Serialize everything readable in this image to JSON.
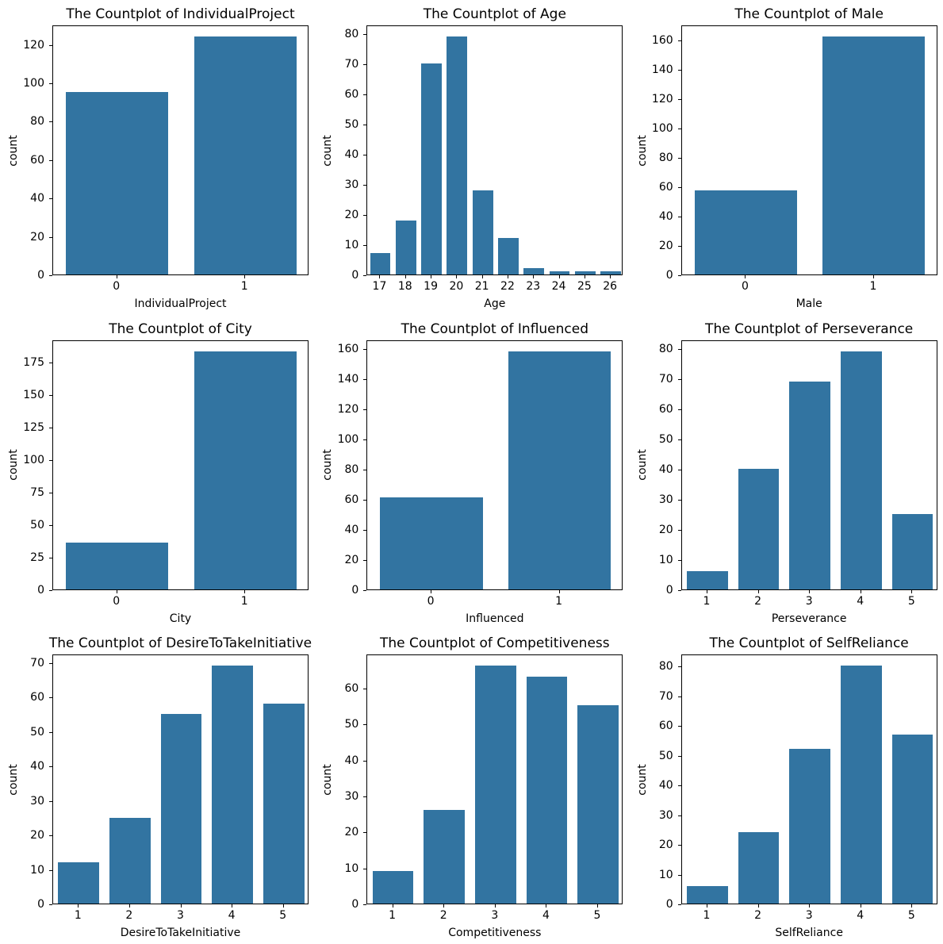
{
  "figure": {
    "background": "#ffffff",
    "bar_color": "#3274a1",
    "text_color": "#000000",
    "grid": {
      "rows": 3,
      "cols": 3
    }
  },
  "chart_data": [
    {
      "type": "bar",
      "title": "The Countplot of IndividualProject",
      "xlabel": "IndividualProject",
      "ylabel": "count",
      "categories": [
        "0",
        "1"
      ],
      "values": [
        95,
        124
      ],
      "yticks": [
        0,
        20,
        40,
        60,
        80,
        100,
        120
      ],
      "ylim": [
        0,
        130.2
      ],
      "grid": false,
      "legend": "none"
    },
    {
      "type": "bar",
      "title": "The Countplot of Age",
      "xlabel": "Age",
      "ylabel": "count",
      "categories": [
        "17",
        "18",
        "19",
        "20",
        "21",
        "22",
        "23",
        "24",
        "25",
        "26"
      ],
      "values": [
        7,
        18,
        70,
        79,
        28,
        12,
        2,
        1,
        1,
        1
      ],
      "yticks": [
        0,
        10,
        20,
        30,
        40,
        50,
        60,
        70,
        80
      ],
      "ylim": [
        0,
        82.95
      ],
      "grid": false,
      "legend": "none"
    },
    {
      "type": "bar",
      "title": "The Countplot of Male",
      "xlabel": "Male",
      "ylabel": "count",
      "categories": [
        "0",
        "1"
      ],
      "values": [
        57,
        162
      ],
      "yticks": [
        0,
        20,
        40,
        60,
        80,
        100,
        120,
        140,
        160
      ],
      "ylim": [
        0,
        170.1
      ],
      "grid": false,
      "legend": "none"
    },
    {
      "type": "bar",
      "title": "The Countplot of City",
      "xlabel": "City",
      "ylabel": "count",
      "categories": [
        "0",
        "1"
      ],
      "values": [
        36,
        183
      ],
      "yticks": [
        0,
        25,
        50,
        75,
        100,
        125,
        150,
        175
      ],
      "ylim": [
        0,
        192.15
      ],
      "grid": false,
      "legend": "none"
    },
    {
      "type": "bar",
      "title": "The Countplot of Influenced",
      "xlabel": "Influenced",
      "ylabel": "count",
      "categories": [
        "0",
        "1"
      ],
      "values": [
        61,
        158
      ],
      "yticks": [
        0,
        20,
        40,
        60,
        80,
        100,
        120,
        140,
        160
      ],
      "ylim": [
        0,
        165.9
      ],
      "grid": false,
      "legend": "none"
    },
    {
      "type": "bar",
      "title": "The Countplot of Perseverance",
      "xlabel": "Perseverance",
      "ylabel": "count",
      "categories": [
        "1",
        "2",
        "3",
        "4",
        "5"
      ],
      "values": [
        6,
        40,
        69,
        79,
        25
      ],
      "yticks": [
        0,
        10,
        20,
        30,
        40,
        50,
        60,
        70,
        80
      ],
      "ylim": [
        0,
        82.95
      ],
      "grid": false,
      "legend": "none"
    },
    {
      "type": "bar",
      "title": "The Countplot of DesireToTakeInitiative",
      "xlabel": "DesireToTakeInitiative",
      "ylabel": "count",
      "categories": [
        "1",
        "2",
        "3",
        "4",
        "5"
      ],
      "values": [
        12,
        25,
        55,
        69,
        58
      ],
      "yticks": [
        0,
        10,
        20,
        30,
        40,
        50,
        60,
        70
      ],
      "ylim": [
        0,
        72.45
      ],
      "grid": false,
      "legend": "none"
    },
    {
      "type": "bar",
      "title": "The Countplot of Competitiveness",
      "xlabel": "Competitiveness",
      "ylabel": "count",
      "categories": [
        "1",
        "2",
        "3",
        "4",
        "5"
      ],
      "values": [
        9,
        26,
        66,
        63,
        55
      ],
      "yticks": [
        0,
        10,
        20,
        30,
        40,
        50,
        60
      ],
      "ylim": [
        0,
        69.3
      ],
      "grid": false,
      "legend": "none"
    },
    {
      "type": "bar",
      "title": "The Countplot of SelfReliance",
      "xlabel": "SelfReliance",
      "ylabel": "count",
      "categories": [
        "1",
        "2",
        "3",
        "4",
        "5"
      ],
      "values": [
        6,
        24,
        52,
        80,
        57
      ],
      "yticks": [
        0,
        10,
        20,
        30,
        40,
        50,
        60,
        70,
        80
      ],
      "ylim": [
        0,
        84
      ],
      "grid": false,
      "legend": "none"
    }
  ]
}
